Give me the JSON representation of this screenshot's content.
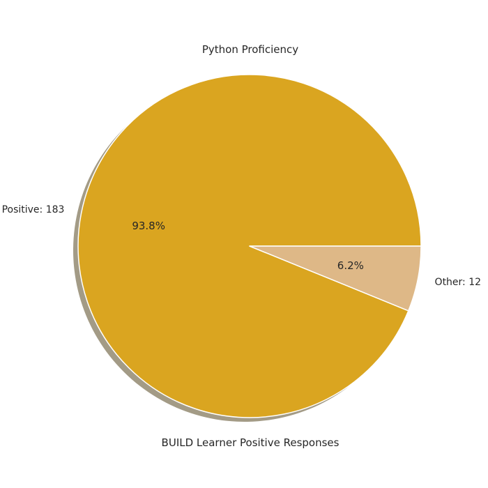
{
  "chart_data": {
    "type": "pie",
    "title": "Python Proficiency",
    "xlabel": "BUILD Learner Positive Responses",
    "categories": [
      "Positive",
      "Other"
    ],
    "values": [
      183,
      12
    ],
    "slice_labels": [
      "Positive: 183",
      "Other: 12"
    ],
    "percent_labels": [
      "93.8%",
      "6.2%"
    ],
    "colors": [
      "#DAA520",
      "#DEB887"
    ],
    "slice_edge_color": "#FFFFFF",
    "shadow": true,
    "shadow_color": "#A39B86",
    "start_angle_degrees": 0,
    "direction": "counterclockwise"
  }
}
